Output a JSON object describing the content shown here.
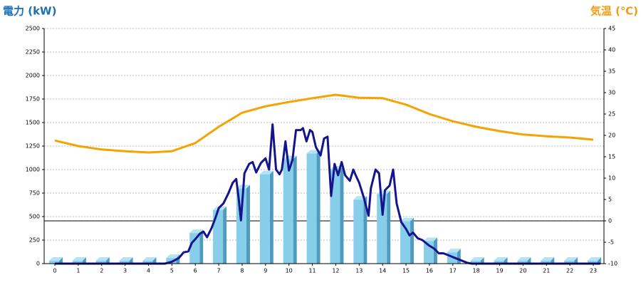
{
  "chart_data": {
    "type": "bar",
    "y_label": "電力 (kW)",
    "y2_label": "気温 (℃)",
    "categories": [
      0,
      1,
      2,
      3,
      4,
      5,
      6,
      7,
      8,
      9,
      10,
      11,
      12,
      13,
      14,
      15,
      16,
      17,
      18,
      19,
      20,
      21,
      22,
      23
    ],
    "ylim": [
      0,
      2500
    ],
    "yticks": [
      0,
      250,
      500,
      750,
      1000,
      1250,
      1500,
      1750,
      2000,
      2250,
      2500
    ],
    "y2lim": [
      -10,
      45
    ],
    "y2ticks": [
      -10,
      -5,
      0,
      5,
      10,
      15,
      20,
      25,
      30,
      35,
      40,
      45
    ],
    "grid": true,
    "series": [
      {
        "type": "bar",
        "color": "#87ceeb",
        "values": [
          30,
          30,
          30,
          30,
          30,
          60,
          325,
          570,
          800,
          950,
          1110,
          1170,
          1000,
          680,
          740,
          450,
          240,
          120,
          30,
          30,
          30,
          30,
          30,
          30
        ]
      },
      {
        "type": "line",
        "axis": "y2",
        "color": "#f5a300",
        "values": [
          18.8,
          17.5,
          16.7,
          16.3,
          16,
          16.3,
          18.2,
          22,
          25.3,
          26.8,
          27.8,
          28.7,
          29.5,
          28.8,
          28.7,
          27.2,
          25,
          23.3,
          22,
          21,
          20.2,
          19.8,
          19.5,
          19
        ]
      },
      {
        "type": "line",
        "color": "#14148c",
        "x": [
          0,
          4.7,
          5,
          5.3,
          5.5,
          5.7,
          5.85,
          6,
          6.2,
          6.35,
          6.5,
          6.7,
          6.85,
          7,
          7.2,
          7.4,
          7.6,
          7.75,
          7.85,
          7.95,
          8.1,
          8.3,
          8.45,
          8.6,
          8.8,
          9,
          9.15,
          9.3,
          9.45,
          9.6,
          9.7,
          9.85,
          10,
          10.15,
          10.3,
          10.5,
          10.6,
          10.75,
          10.9,
          11,
          11.15,
          11.35,
          11.5,
          11.65,
          11.8,
          11.95,
          12.1,
          12.25,
          12.4,
          12.6,
          12.75,
          12.85,
          13,
          13.2,
          13.4,
          13.5,
          13.7,
          13.85,
          14,
          14.1,
          14.3,
          14.45,
          14.6,
          14.8,
          15,
          15.15,
          15.3,
          15.5,
          15.7,
          16,
          16.2,
          16.4,
          16.6,
          16.9,
          17,
          17.3,
          17.6,
          17.8,
          23.3
        ],
        "values": [
          0,
          0,
          20,
          60,
          120,
          130,
          220,
          260,
          320,
          340,
          280,
          380,
          480,
          590,
          640,
          740,
          860,
          900,
          700,
          460,
          960,
          1060,
          1080,
          970,
          1070,
          1120,
          1000,
          1480,
          1000,
          950,
          1000,
          1300,
          990,
          1100,
          1420,
          1420,
          1440,
          1300,
          1420,
          1400,
          1240,
          1150,
          1330,
          1350,
          720,
          1060,
          940,
          1080,
          940,
          880,
          1000,
          940,
          860,
          700,
          510,
          800,
          1000,
          960,
          520,
          780,
          830,
          1000,
          640,
          440,
          370,
          300,
          330,
          270,
          250,
          190,
          160,
          110,
          110,
          80,
          70,
          40,
          10,
          0,
          0
        ]
      }
    ]
  }
}
